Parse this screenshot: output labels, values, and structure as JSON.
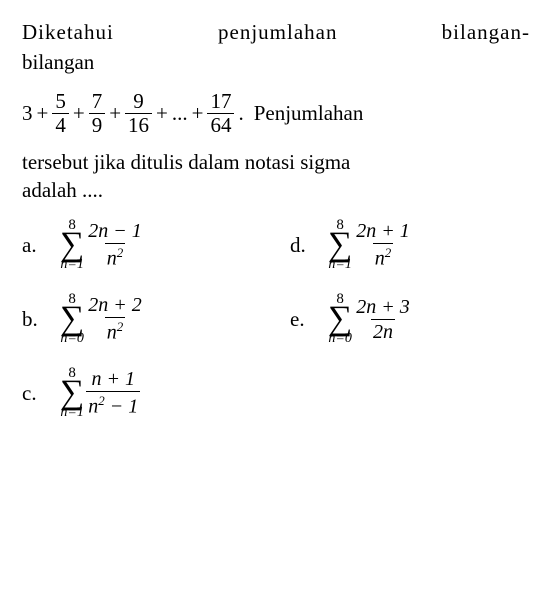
{
  "heading_line1": "Diketahui penjumlahan bilangan-",
  "heading_line2": "bilangan",
  "series": {
    "lead": "3",
    "plus": "+",
    "dots": "...",
    "terms": [
      {
        "num": "5",
        "den": "4"
      },
      {
        "num": "7",
        "den": "9"
      },
      {
        "num": "9",
        "den": "16"
      },
      {
        "num": "17",
        "den": "64"
      }
    ],
    "period": ".",
    "suffix": "Penjumlahan"
  },
  "question_line1": "tersebut jika ditulis dalam notasi sigma",
  "question_line2": "adalah ....",
  "options": {
    "a": {
      "label": "a.",
      "upper": "8",
      "lower": "n=1",
      "num_parts": [
        "2",
        "n",
        " − 1"
      ],
      "den_n": "n",
      "den_sup": "2",
      "den_extra": ""
    },
    "d": {
      "label": "d.",
      "upper": "8",
      "lower": "n=1",
      "num_parts": [
        "2",
        "n",
        " + 1"
      ],
      "den_n": "n",
      "den_sup": "2",
      "den_extra": ""
    },
    "b": {
      "label": "b.",
      "upper": "8",
      "lower": "n=0",
      "num_parts": [
        "2",
        "n",
        " + 2"
      ],
      "den_n": "n",
      "den_sup": "2",
      "den_extra": ""
    },
    "e": {
      "label": "e.",
      "upper": "8",
      "lower": "n=0",
      "num_parts": [
        "2",
        "n",
        " + 3"
      ],
      "den_n": "2",
      "den_sup": "",
      "den_extra": "n"
    },
    "c": {
      "label": "c.",
      "upper": "8",
      "lower": "n=1",
      "num_parts": [
        "",
        "n",
        " + 1"
      ],
      "den_n": "n",
      "den_sup": "2",
      "den_extra": " − 1"
    }
  },
  "style": {
    "font_family": "Times New Roman",
    "text_color": "#000000",
    "background_color": "#ffffff",
    "base_fontsize": 21,
    "sigma_fontsize": 34,
    "limit_fontsize": 14
  }
}
